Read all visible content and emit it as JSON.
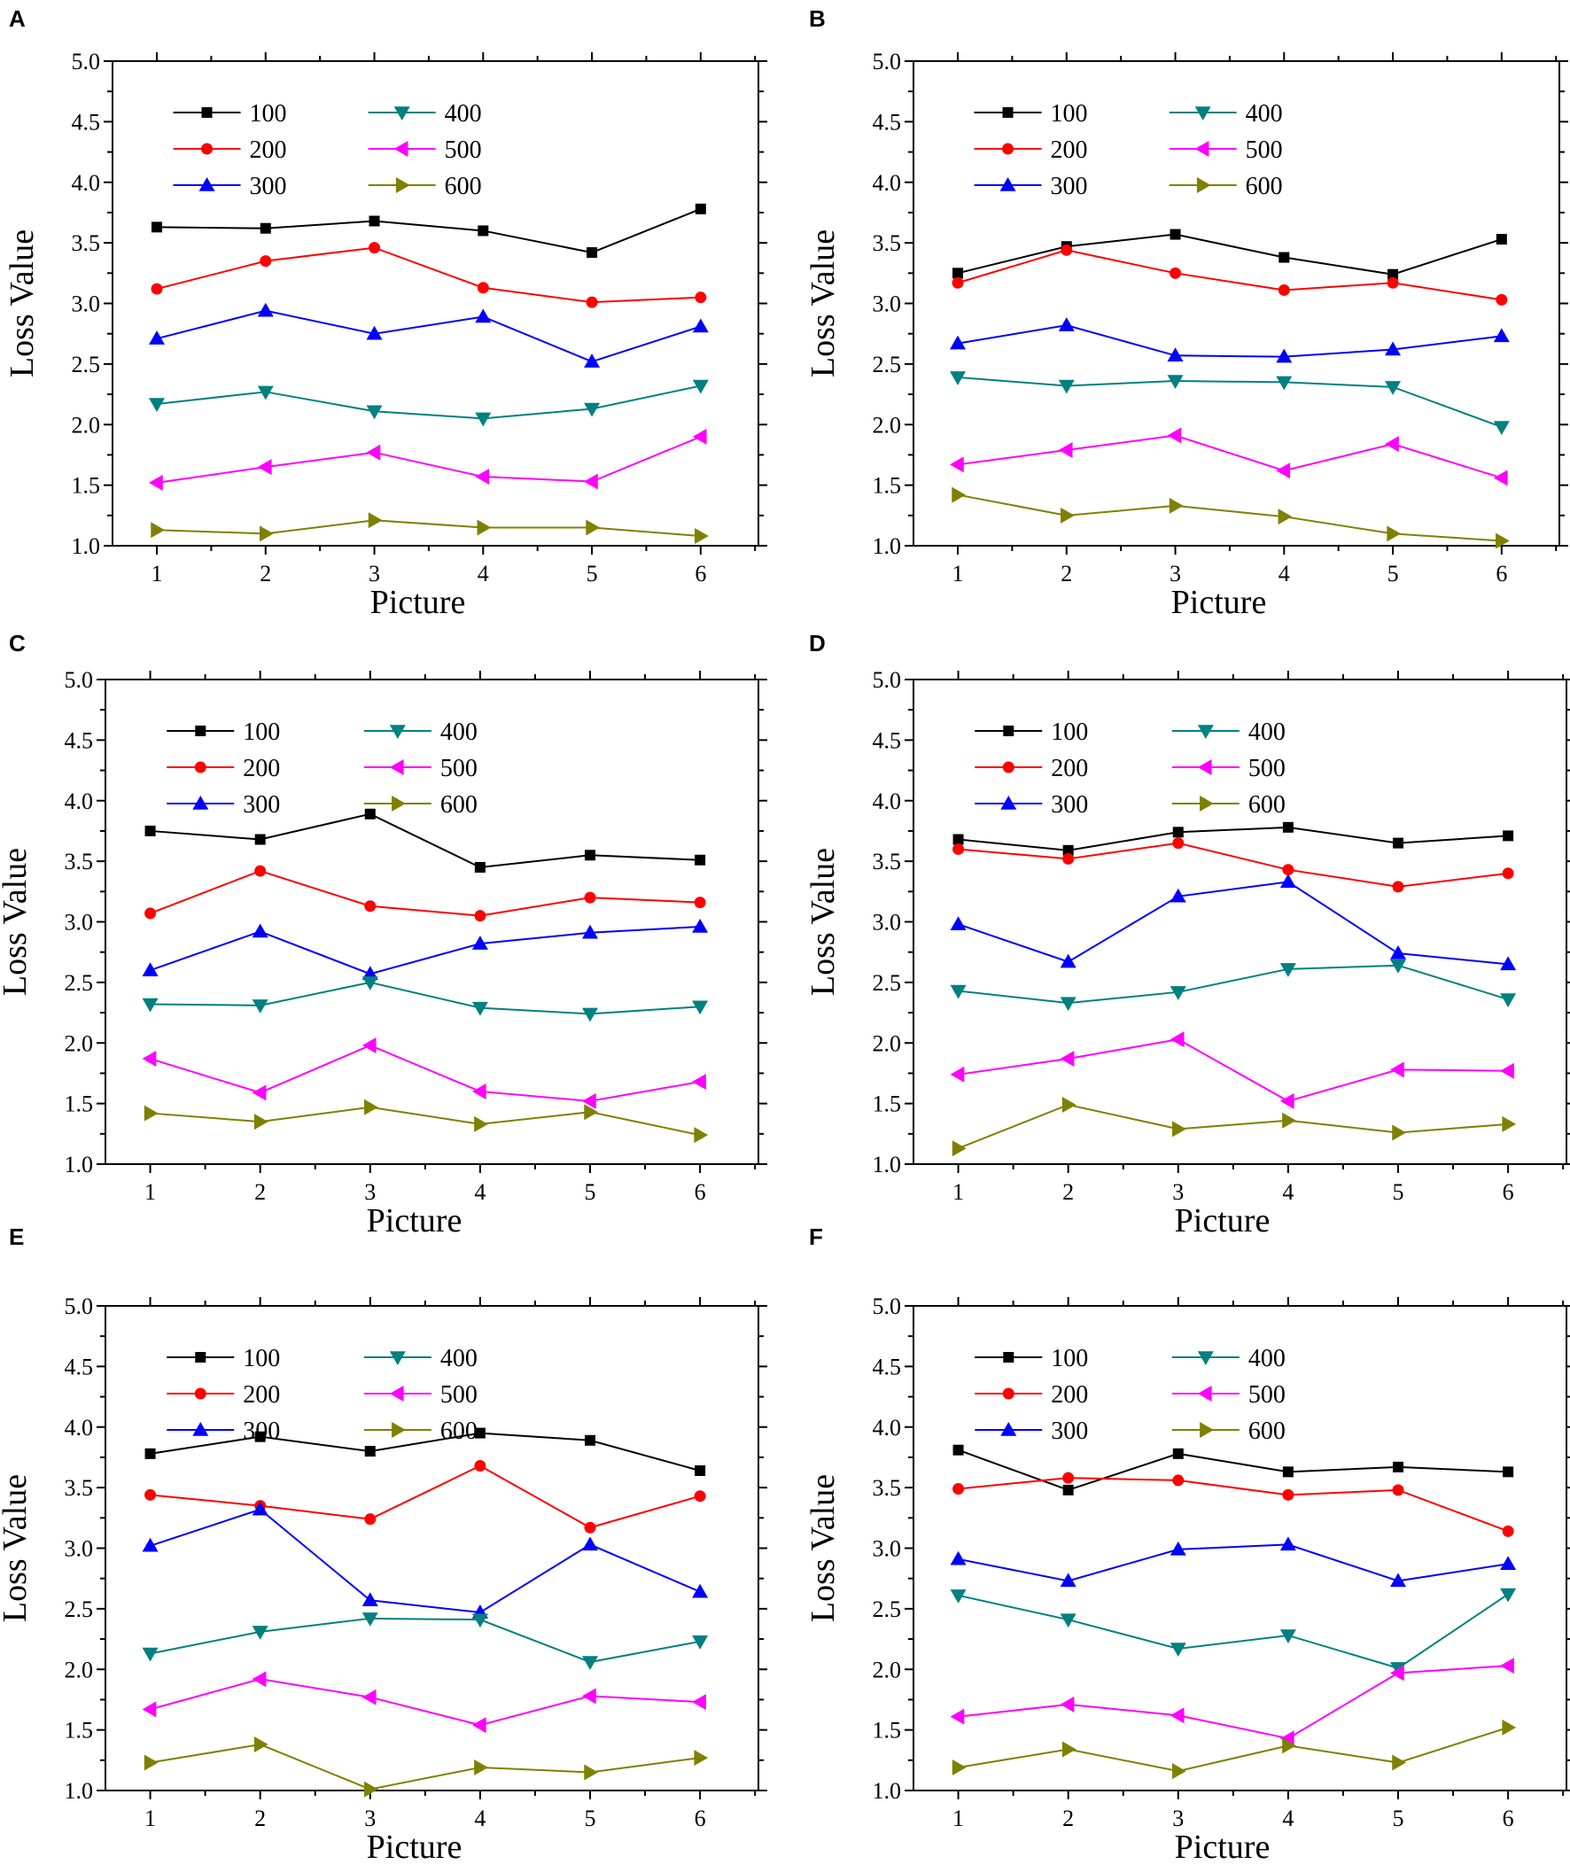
{
  "figure": {
    "series_colors": {
      "100": "#000000",
      "200": "#ff0000",
      "300": "#0000ff",
      "400": "#008080",
      "500": "#ff00ff",
      "600": "#808000"
    },
    "series_markers": {
      "100": "square",
      "200": "circle",
      "300": "triangle-up",
      "400": "triangle-down",
      "500": "triangle-left",
      "600": "triangle-right"
    }
  },
  "chart_data": [
    {
      "panel": "A",
      "type": "line",
      "xlabel": "Picture",
      "ylabel": "Loss Value",
      "x": [
        1,
        2,
        3,
        4,
        5,
        6
      ],
      "xticks": [
        "1",
        "2",
        "3",
        "4",
        "5",
        "6"
      ],
      "ylim": [
        1.0,
        5.0
      ],
      "yticks": [
        "1.0",
        "1.5",
        "2.0",
        "2.5",
        "3.0",
        "3.5",
        "4.0",
        "4.5",
        "5.0"
      ],
      "legend": [
        "100",
        "200",
        "300",
        "400",
        "500",
        "600"
      ],
      "series": [
        {
          "name": "100",
          "values": [
            3.63,
            3.62,
            3.68,
            3.6,
            3.42,
            3.78
          ]
        },
        {
          "name": "200",
          "values": [
            3.12,
            3.35,
            3.46,
            3.13,
            3.01,
            3.05
          ]
        },
        {
          "name": "300",
          "values": [
            2.71,
            2.94,
            2.75,
            2.89,
            2.52,
            2.81
          ]
        },
        {
          "name": "400",
          "values": [
            2.17,
            2.27,
            2.11,
            2.05,
            2.13,
            2.32
          ]
        },
        {
          "name": "500",
          "values": [
            1.52,
            1.65,
            1.77,
            1.57,
            1.53,
            1.9
          ]
        },
        {
          "name": "600",
          "values": [
            1.13,
            1.1,
            1.21,
            1.15,
            1.15,
            1.08
          ]
        }
      ]
    },
    {
      "panel": "B",
      "type": "line",
      "xlabel": "Picture",
      "ylabel": "Loss Value",
      "x": [
        1,
        2,
        3,
        4,
        5,
        6
      ],
      "xticks": [
        "1",
        "2",
        "3",
        "4",
        "5",
        "6"
      ],
      "ylim": [
        1.0,
        5.0
      ],
      "yticks": [
        "1.0",
        "1.5",
        "2.0",
        "2.5",
        "3.0",
        "3.5",
        "4.0",
        "4.5",
        "5.0"
      ],
      "legend": [
        "100",
        "200",
        "300",
        "400",
        "500",
        "600"
      ],
      "series": [
        {
          "name": "100",
          "values": [
            3.25,
            3.47,
            3.57,
            3.38,
            3.24,
            3.53
          ]
        },
        {
          "name": "200",
          "values": [
            3.17,
            3.44,
            3.25,
            3.11,
            3.17,
            3.03
          ]
        },
        {
          "name": "300",
          "values": [
            2.67,
            2.82,
            2.57,
            2.56,
            2.62,
            2.73
          ]
        },
        {
          "name": "400",
          "values": [
            2.39,
            2.32,
            2.36,
            2.35,
            2.31,
            1.98
          ]
        },
        {
          "name": "500",
          "values": [
            1.67,
            1.79,
            1.91,
            1.62,
            1.84,
            1.56
          ]
        },
        {
          "name": "600",
          "values": [
            1.42,
            1.25,
            1.33,
            1.24,
            1.1,
            1.04
          ]
        }
      ]
    },
    {
      "panel": "C",
      "type": "line",
      "xlabel": "Picture",
      "ylabel": "Loss Value",
      "x": [
        1,
        2,
        3,
        4,
        5,
        6
      ],
      "xticks": [
        "1",
        "2",
        "3",
        "4",
        "5",
        "6"
      ],
      "ylim": [
        1.0,
        5.0
      ],
      "yticks": [
        "1.0",
        "1.5",
        "2.0",
        "2.5",
        "3.0",
        "3.5",
        "4.0",
        "4.5",
        "5.0"
      ],
      "legend": [
        "100",
        "200",
        "300",
        "400",
        "500",
        "600"
      ],
      "series": [
        {
          "name": "100",
          "values": [
            3.75,
            3.68,
            3.89,
            3.45,
            3.55,
            3.51
          ]
        },
        {
          "name": "200",
          "values": [
            3.07,
            3.42,
            3.13,
            3.05,
            3.2,
            3.16
          ]
        },
        {
          "name": "300",
          "values": [
            2.6,
            2.92,
            2.57,
            2.82,
            2.91,
            2.96
          ]
        },
        {
          "name": "400",
          "values": [
            2.32,
            2.31,
            2.5,
            2.29,
            2.24,
            2.3
          ]
        },
        {
          "name": "500",
          "values": [
            1.87,
            1.59,
            1.98,
            1.6,
            1.52,
            1.68
          ]
        },
        {
          "name": "600",
          "values": [
            1.42,
            1.35,
            1.47,
            1.33,
            1.43,
            1.24
          ]
        }
      ]
    },
    {
      "panel": "D",
      "type": "line",
      "xlabel": "Picture",
      "ylabel": "Loss Value",
      "x": [
        1,
        2,
        3,
        4,
        5,
        6
      ],
      "xticks": [
        "1",
        "2",
        "3",
        "4",
        "5",
        "6"
      ],
      "ylim": [
        1.0,
        5.0
      ],
      "yticks": [
        "1.0",
        "1.5",
        "2.0",
        "2.5",
        "3.0",
        "3.5",
        "4.0",
        "4.5",
        "5.0"
      ],
      "legend": [
        "100",
        "200",
        "300",
        "400",
        "500",
        "600"
      ],
      "series": [
        {
          "name": "100",
          "values": [
            3.68,
            3.59,
            3.74,
            3.78,
            3.65,
            3.71
          ]
        },
        {
          "name": "200",
          "values": [
            3.6,
            3.52,
            3.65,
            3.43,
            3.29,
            3.4
          ]
        },
        {
          "name": "300",
          "values": [
            2.98,
            2.67,
            3.21,
            3.33,
            2.74,
            2.65
          ]
        },
        {
          "name": "400",
          "values": [
            2.43,
            2.33,
            2.42,
            2.61,
            2.64,
            2.36
          ]
        },
        {
          "name": "500",
          "values": [
            1.74,
            1.87,
            2.03,
            1.52,
            1.78,
            1.77
          ]
        },
        {
          "name": "600",
          "values": [
            1.13,
            1.49,
            1.29,
            1.36,
            1.26,
            1.33
          ]
        }
      ]
    },
    {
      "panel": "E",
      "type": "line",
      "xlabel": "Picture",
      "ylabel": "Loss Value",
      "x": [
        1,
        2,
        3,
        4,
        5,
        6
      ],
      "xticks": [
        "1",
        "2",
        "3",
        "4",
        "5",
        "6"
      ],
      "ylim": [
        1.0,
        5.0
      ],
      "yticks": [
        "1.0",
        "1.5",
        "2.0",
        "2.5",
        "3.0",
        "3.5",
        "4.0",
        "4.5",
        "5.0"
      ],
      "legend": [
        "100",
        "200",
        "300",
        "400",
        "500",
        "600"
      ],
      "series": [
        {
          "name": "100",
          "values": [
            3.78,
            3.92,
            3.8,
            3.95,
            3.89,
            3.64
          ]
        },
        {
          "name": "200",
          "values": [
            3.44,
            3.35,
            3.24,
            3.68,
            3.17,
            3.43
          ]
        },
        {
          "name": "300",
          "values": [
            3.02,
            3.32,
            2.57,
            2.47,
            3.03,
            2.64
          ]
        },
        {
          "name": "400",
          "values": [
            2.13,
            2.31,
            2.42,
            2.41,
            2.06,
            2.23
          ]
        },
        {
          "name": "500",
          "values": [
            1.67,
            1.92,
            1.77,
            1.54,
            1.78,
            1.73
          ]
        },
        {
          "name": "600",
          "values": [
            1.23,
            1.38,
            1.01,
            1.19,
            1.15,
            1.27
          ]
        }
      ]
    },
    {
      "panel": "F",
      "type": "line",
      "xlabel": "Picture",
      "ylabel": "Loss Value",
      "x": [
        1,
        2,
        3,
        4,
        5,
        6
      ],
      "xticks": [
        "1",
        "2",
        "3",
        "4",
        "5",
        "6"
      ],
      "ylim": [
        1.0,
        5.0
      ],
      "yticks": [
        "1.0",
        "1.5",
        "2.0",
        "2.5",
        "3.0",
        "3.5",
        "4.0",
        "4.5",
        "5.0"
      ],
      "legend": [
        "100",
        "200",
        "300",
        "400",
        "500",
        "600"
      ],
      "series": [
        {
          "name": "100",
          "values": [
            3.81,
            3.48,
            3.78,
            3.63,
            3.67,
            3.63
          ]
        },
        {
          "name": "200",
          "values": [
            3.49,
            3.58,
            3.56,
            3.44,
            3.48,
            3.14
          ]
        },
        {
          "name": "300",
          "values": [
            2.91,
            2.73,
            2.99,
            3.03,
            2.73,
            2.87
          ]
        },
        {
          "name": "400",
          "values": [
            2.61,
            2.41,
            2.17,
            2.28,
            2.01,
            2.62
          ]
        },
        {
          "name": "500",
          "values": [
            1.61,
            1.71,
            1.62,
            1.43,
            1.97,
            2.03
          ]
        },
        {
          "name": "600",
          "values": [
            1.19,
            1.34,
            1.16,
            1.37,
            1.23,
            1.52
          ]
        }
      ]
    }
  ]
}
